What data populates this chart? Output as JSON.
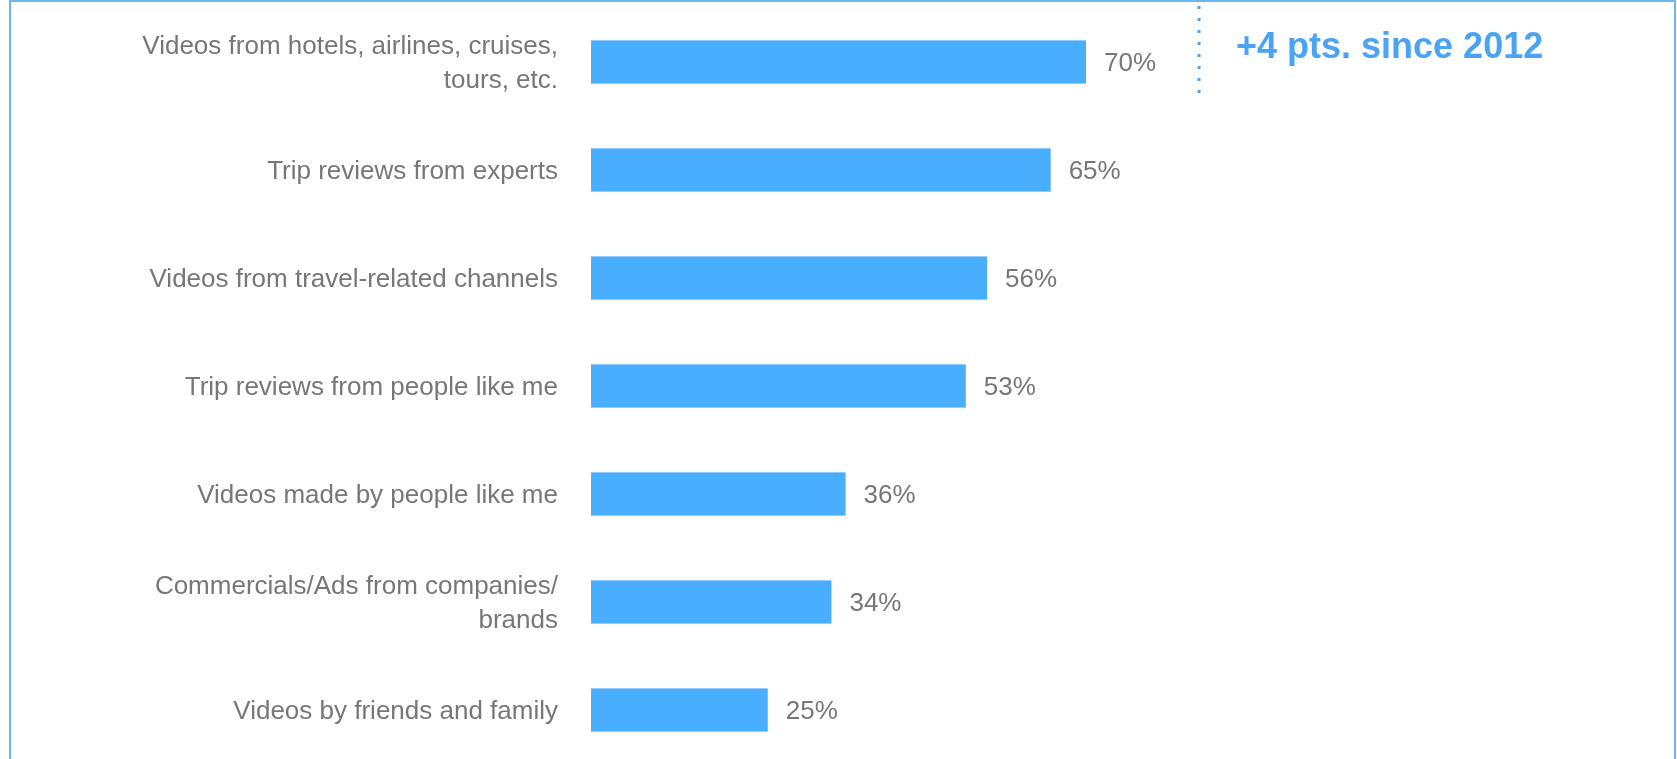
{
  "chart_data": {
    "type": "bar",
    "orientation": "horizontal",
    "value_labels": [
      "70%",
      "65%",
      "56%",
      "53%",
      "36%",
      "34%",
      "25%"
    ],
    "categories": [
      "Videos from hotels, airlines, cruises, tours, etc.",
      "Trip reviews from experts",
      "Videos from travel-related channels",
      "Trip reviews from people like me",
      "Videos made by people like me",
      "Commercials/Ads from companies/ brands",
      "Videos by friends and family"
    ],
    "values": [
      70,
      65,
      56,
      53,
      36,
      34,
      25
    ],
    "color": "#4aaeff",
    "annotations": [
      "+4 pts. since 2012"
    ]
  }
}
